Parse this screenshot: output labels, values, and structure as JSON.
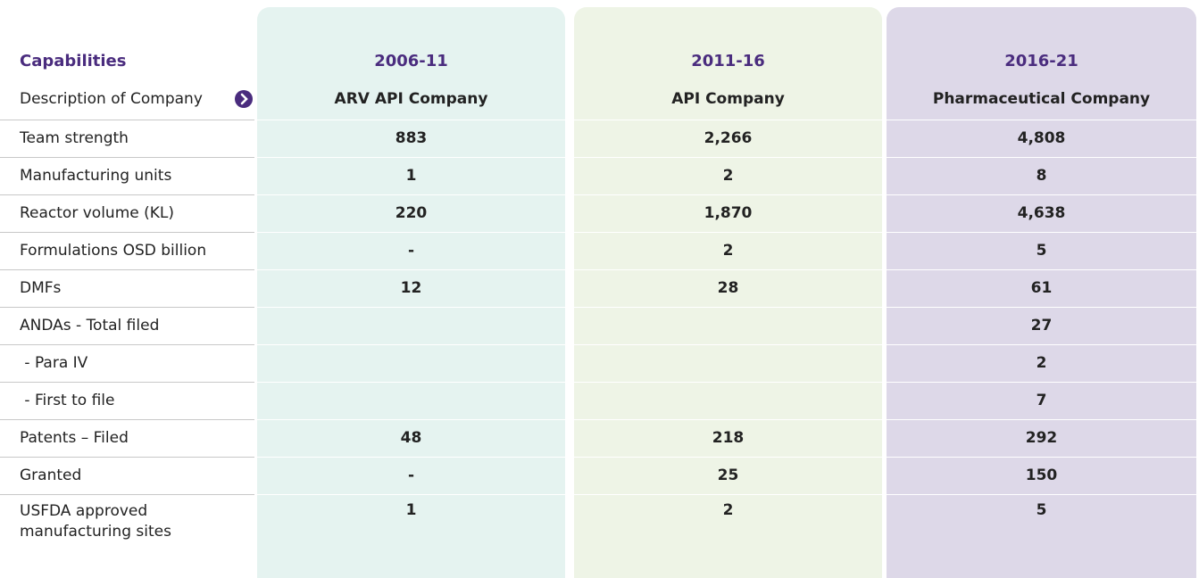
{
  "header": {
    "label": "Capabilities",
    "columns": [
      "2006-11",
      "2011-16",
      "2016-21"
    ]
  },
  "description": {
    "label": "Description of Company",
    "values": [
      "ARV API Company",
      "API Company",
      "Pharmaceutical Company"
    ]
  },
  "rows": [
    {
      "label": "Team strength",
      "values": [
        "883",
        "2,266",
        "4,808"
      ]
    },
    {
      "label": "Manufacturing units",
      "values": [
        "1",
        "2",
        "8"
      ]
    },
    {
      "label": "Reactor volume (KL)",
      "values": [
        "220",
        "1,870",
        "4,638"
      ]
    },
    {
      "label": "Formulations OSD billion",
      "values": [
        "-",
        "2",
        "5"
      ]
    },
    {
      "label": "DMFs",
      "values": [
        "12",
        "28",
        "61"
      ]
    },
    {
      "label": "ANDAs - Total filed",
      "values": [
        null,
        null,
        "27"
      ]
    },
    {
      "label": " - Para IV",
      "values": [
        null,
        null,
        "2"
      ]
    },
    {
      "label": " - First to file",
      "values": [
        null,
        null,
        "7"
      ]
    },
    {
      "label": "Patents – Filed",
      "values": [
        "48",
        "218",
        "292"
      ]
    },
    {
      "label": "Granted",
      "values": [
        "-",
        "25",
        "150"
      ]
    },
    {
      "label": "USFDA approved manufacturing sites",
      "values": [
        "1",
        "2",
        "5"
      ]
    }
  ]
}
